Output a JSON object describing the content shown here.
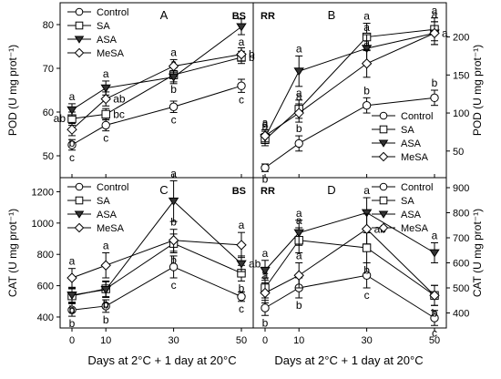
{
  "figure": {
    "xlabel": "Days at 2°C + 1 day at 20°C",
    "series_names": [
      "Control",
      "SA",
      "ASA",
      "MeSA"
    ],
    "colors": {
      "line": "#000000",
      "background": "#ffffff",
      "fill_filled": "#333333"
    }
  },
  "chart_data": [
    {
      "type": "line",
      "panel": "A",
      "tag": "BS",
      "ylabel": "POD (U mg prot⁻¹)",
      "yaxis_side": "left",
      "legend_position": "top-left",
      "x": [
        0,
        10,
        30,
        50
      ],
      "xticks": [
        "0",
        "10",
        "30",
        "50"
      ],
      "ylim": [
        45,
        85
      ],
      "yticks": [
        50,
        60,
        70,
        80
      ],
      "series": [
        {
          "name": "Control",
          "marker": "circle-open",
          "values": [
            52.5,
            57,
            61.2,
            66
          ],
          "errors": [
            1.2,
            1.3,
            1.3,
            1.5
          ],
          "letters": [
            "c",
            "c",
            "c",
            "c"
          ],
          "letter_pos": [
            "below",
            "below",
            "below",
            "below"
          ]
        },
        {
          "name": "SA",
          "marker": "square-open",
          "values": [
            58.5,
            59.5,
            68.5,
            72.5
          ],
          "errors": [
            1.5,
            1.3,
            1.6,
            1.4
          ],
          "letters": [
            "ab",
            "bc",
            "b",
            "b"
          ],
          "letter_pos": [
            "left",
            "right",
            "below",
            "right"
          ]
        },
        {
          "name": "ASA",
          "marker": "triangle-down-filled",
          "values": [
            60.5,
            65.5,
            68,
            79.5
          ],
          "errors": [
            1.4,
            1.6,
            1.5,
            1.8
          ],
          "letters": [
            "a",
            "a",
            "a",
            "a"
          ],
          "letter_pos": [
            "above",
            "above",
            "above",
            "below"
          ]
        },
        {
          "name": "MeSA",
          "marker": "diamond-open",
          "values": [
            56,
            63,
            70.5,
            73.2
          ],
          "errors": [
            1.4,
            1.6,
            1.5,
            1.5
          ],
          "letters": [
            "b",
            "ab",
            "a",
            "b"
          ],
          "letter_pos": [
            "below",
            "right",
            "above",
            "right"
          ]
        }
      ]
    },
    {
      "type": "line",
      "panel": "B",
      "tag": "RR",
      "ylabel": "POD (U mg prot⁻¹)",
      "yaxis_side": "right",
      "legend_position": "bottom-right",
      "x": [
        0,
        10,
        30,
        50
      ],
      "xticks": [
        "0",
        "10",
        "30",
        "50"
      ],
      "ylim": [
        15,
        245
      ],
      "yticks": [
        50,
        100,
        150,
        200
      ],
      "series": [
        {
          "name": "Control",
          "marker": "circle-open",
          "values": [
            28,
            60,
            110,
            120
          ],
          "errors": [
            5,
            10,
            10,
            10
          ],
          "letters": [
            "b",
            "b",
            "b",
            "b"
          ],
          "letter_pos": [
            "below",
            "above",
            "above",
            "above"
          ]
        },
        {
          "name": "SA",
          "marker": "square-open",
          "values": [
            65,
            105,
            200,
            210
          ],
          "errors": [
            8,
            12,
            18,
            15
          ],
          "letters": [
            "a",
            "a",
            "a",
            "a"
          ],
          "letter_pos": [
            "above",
            "above",
            "above",
            "above"
          ]
        },
        {
          "name": "ASA",
          "marker": "triangle-down-filled",
          "values": [
            68,
            155,
            185,
            205
          ],
          "errors": [
            8,
            20,
            18,
            15
          ],
          "letters": [
            "a",
            "a",
            "a",
            "a"
          ],
          "letter_pos": [
            "above",
            "above",
            "above",
            "right"
          ]
        },
        {
          "name": "MeSA",
          "marker": "diamond-open",
          "values": [
            70,
            100,
            165,
            205
          ],
          "errors": [
            8,
            12,
            18,
            15
          ],
          "letters": [
            "a",
            "a",
            "a",
            "a"
          ],
          "letter_pos": [
            "above",
            "above",
            "above",
            "above"
          ]
        }
      ]
    },
    {
      "type": "line",
      "panel": "C",
      "tag": "BS",
      "ylabel": "CAT (U mg prot⁻¹)",
      "yaxis_side": "left",
      "legend_position": "top-left",
      "x": [
        0,
        10,
        30,
        50
      ],
      "xticks": [
        "0",
        "10",
        "30",
        "50"
      ],
      "ylim": [
        330,
        1290
      ],
      "yticks": [
        400,
        600,
        800,
        1000,
        1200
      ],
      "series": [
        {
          "name": "Control",
          "marker": "circle-open",
          "values": [
            445,
            470,
            720,
            530
          ],
          "errors": [
            40,
            40,
            70,
            30
          ],
          "letters": [
            "b",
            "b",
            "c",
            "c"
          ],
          "letter_pos": [
            "below",
            "below",
            "below",
            "below"
          ]
        },
        {
          "name": "SA",
          "marker": "square-open",
          "values": [
            535,
            580,
            870,
            680
          ],
          "errors": [
            45,
            50,
            60,
            50
          ],
          "letters": [
            "b",
            "b",
            "b",
            "b"
          ],
          "letter_pos": [
            "below",
            "below",
            "below",
            "below"
          ]
        },
        {
          "name": "ASA",
          "marker": "triangle-down-filled",
          "values": [
            540,
            575,
            1140,
            740
          ],
          "errors": [
            45,
            50,
            130,
            50
          ],
          "letters": [
            "b",
            "b",
            "a",
            "ab"
          ],
          "letter_pos": [
            "below",
            "below",
            "above",
            "right"
          ]
        },
        {
          "name": "MeSA",
          "marker": "diamond-open",
          "values": [
            650,
            730,
            890,
            860
          ],
          "errors": [
            60,
            80,
            70,
            80
          ],
          "letters": [
            "a",
            "a",
            "b",
            "a"
          ],
          "letter_pos": [
            "above",
            "above",
            "above",
            "above"
          ]
        }
      ]
    },
    {
      "type": "line",
      "panel": "D",
      "tag": "RR",
      "ylabel": "CAT (U mg prot⁻¹)",
      "yaxis_side": "right",
      "legend_position": "top-right",
      "x": [
        0,
        10,
        30,
        50
      ],
      "xticks": [
        "0",
        "10",
        "30",
        "50"
      ],
      "ylim": [
        340,
        940
      ],
      "yticks": [
        400,
        500,
        600,
        700,
        800,
        900
      ],
      "series": [
        {
          "name": "Control",
          "marker": "circle-open",
          "values": [
            420,
            500,
            550,
            380
          ],
          "errors": [
            30,
            40,
            50,
            30
          ],
          "letters": [
            "b",
            "b",
            "c",
            "c"
          ],
          "letter_pos": [
            "below",
            "below",
            "below",
            "below"
          ]
        },
        {
          "name": "SA",
          "marker": "square-open",
          "values": [
            500,
            690,
            660,
            470
          ],
          "errors": [
            40,
            50,
            60,
            40
          ],
          "letters": [
            "a",
            "a",
            "b",
            "b"
          ],
          "letter_pos": [
            "above",
            "above",
            "below",
            "below"
          ]
        },
        {
          "name": "ASA",
          "marker": "triangle-down-filled",
          "values": [
            570,
            720,
            800,
            640
          ],
          "errors": [
            40,
            50,
            60,
            40
          ],
          "letters": [
            "a",
            "a",
            "a",
            "a"
          ],
          "letter_pos": [
            "above",
            "above",
            "above",
            "above"
          ]
        },
        {
          "name": "MeSA",
          "marker": "diamond-open",
          "values": [
            480,
            550,
            735,
            470
          ],
          "errors": [
            40,
            50,
            60,
            40
          ],
          "letters": [
            "a",
            "a",
            "ab",
            "b"
          ],
          "letter_pos": [
            "above",
            "above",
            "right",
            "below"
          ]
        }
      ]
    }
  ]
}
